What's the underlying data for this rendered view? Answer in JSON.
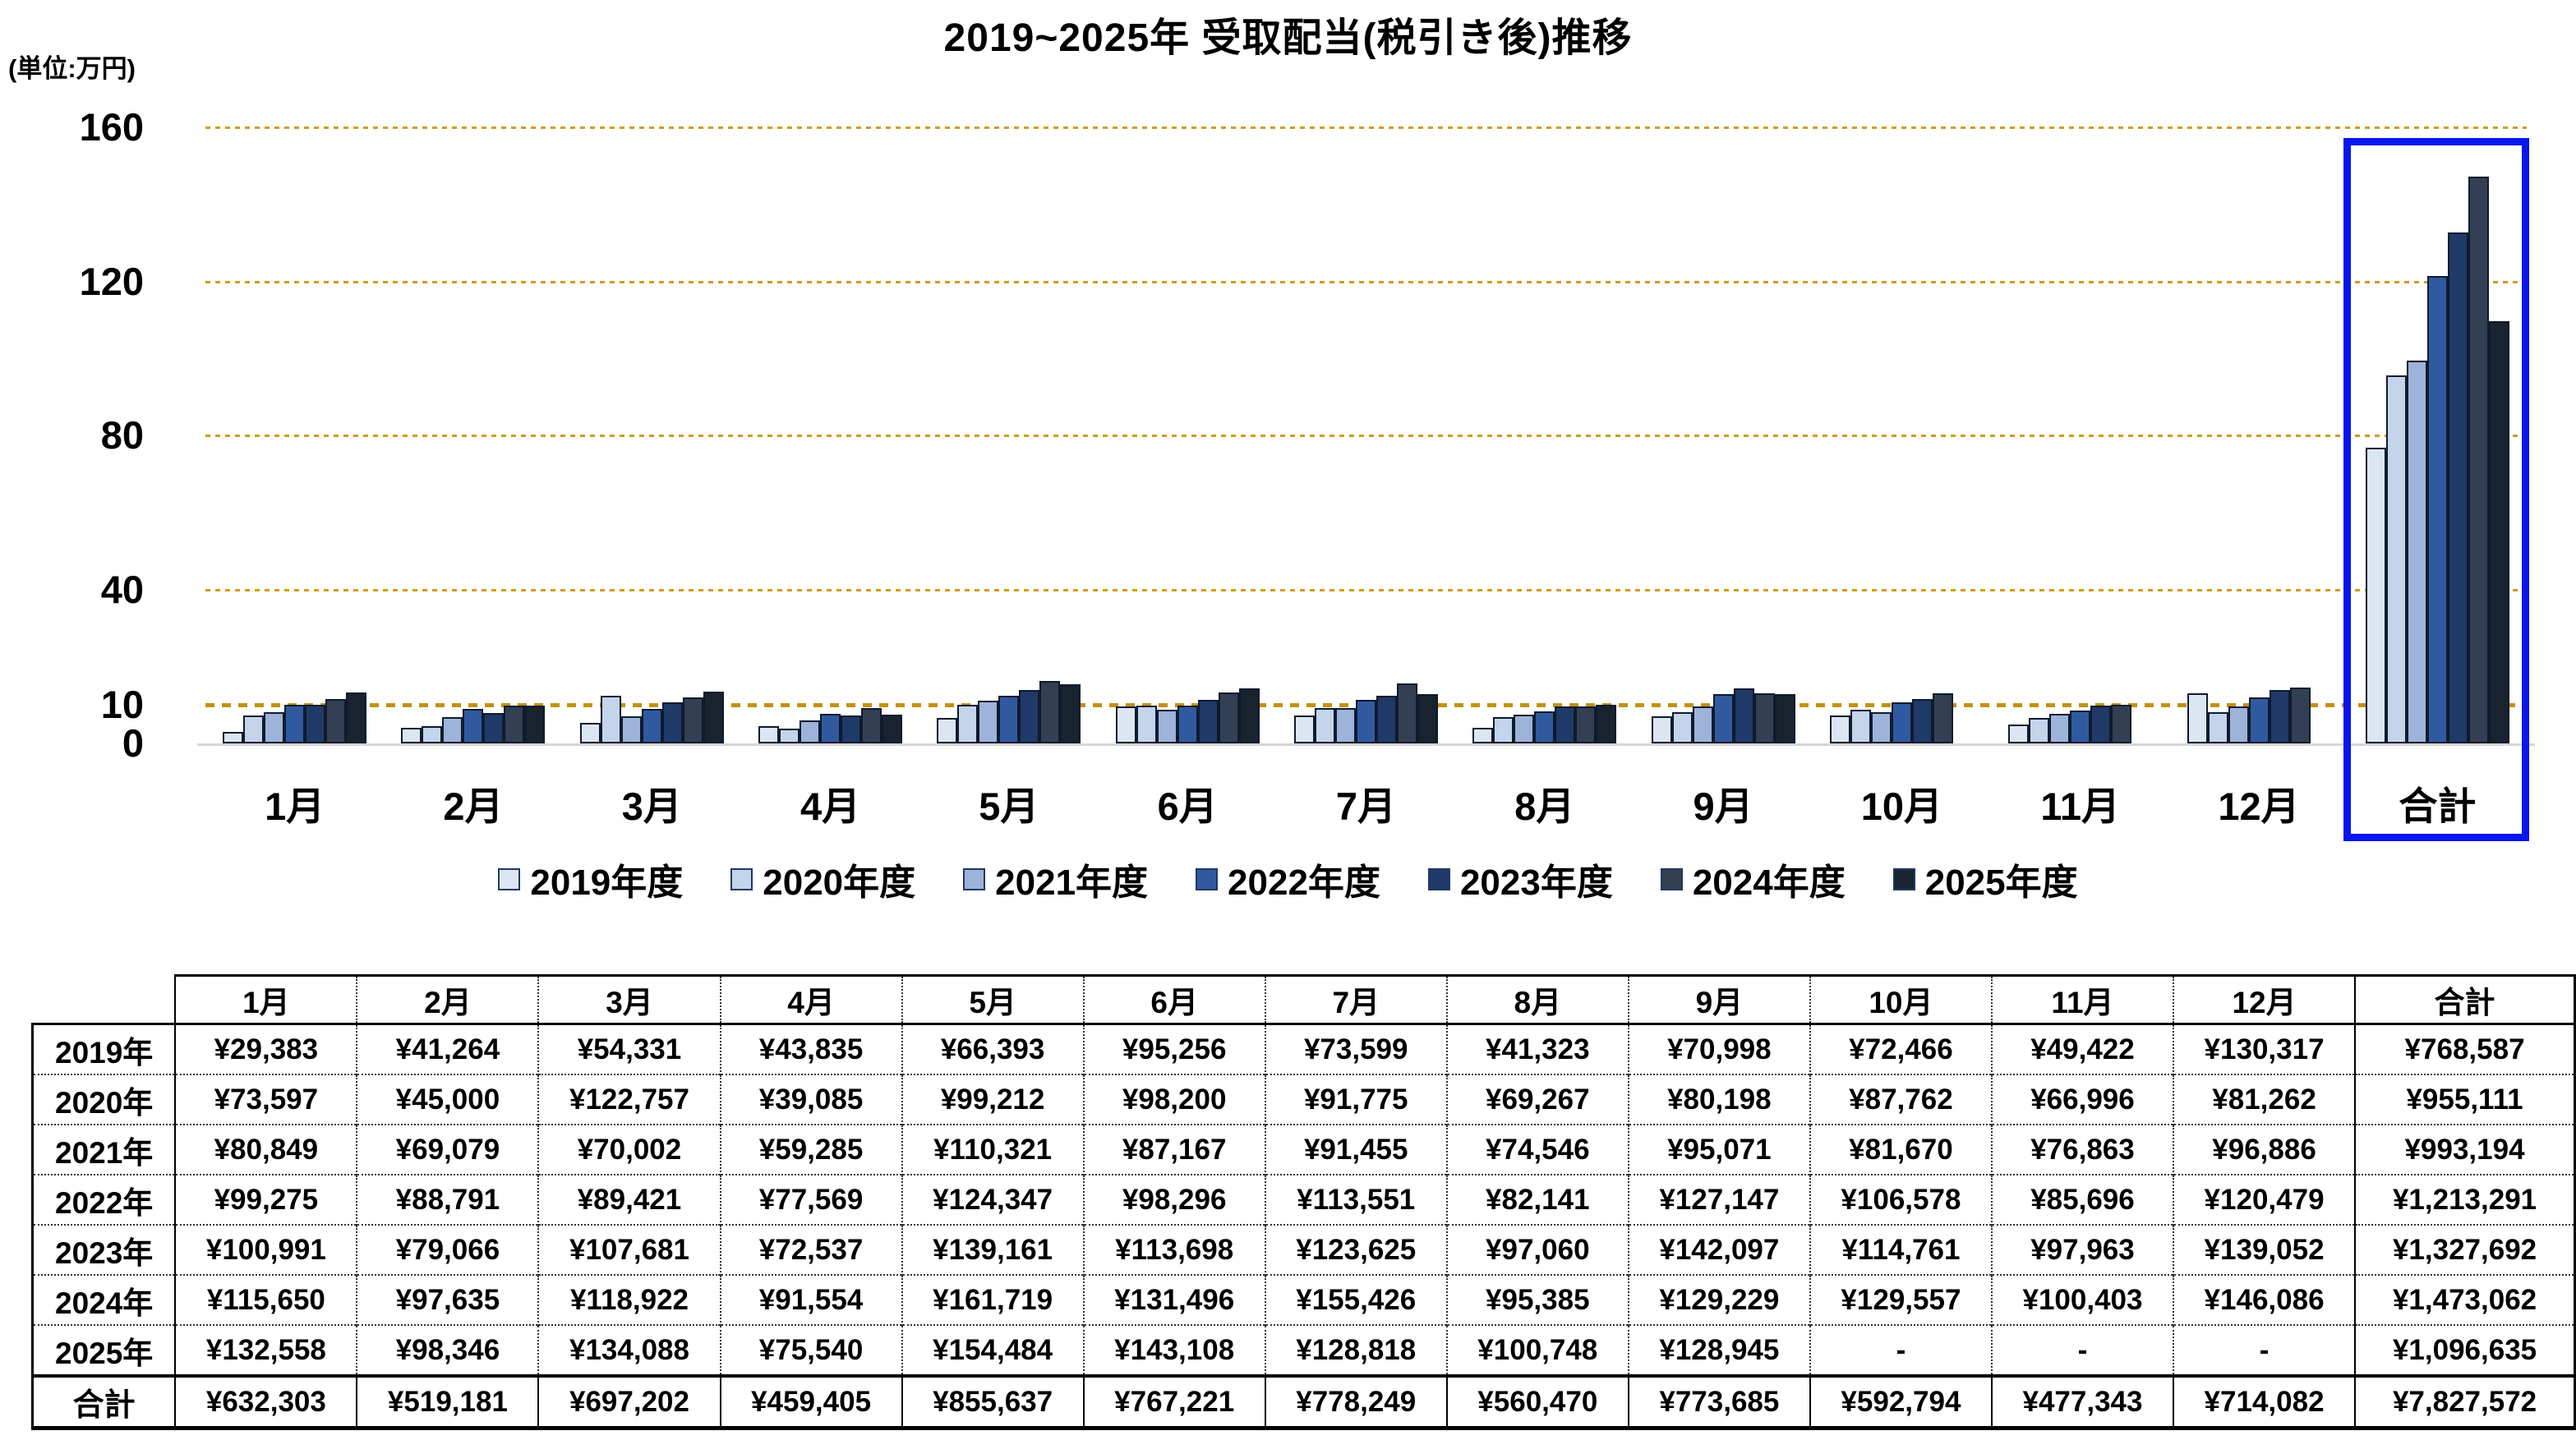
{
  "title": "2019~2025年 受取配当(税引き後)推移",
  "unit_label": "(単位:万円)",
  "chart_data": {
    "type": "bar",
    "title": "2019~2025年 受取配当(税引き後)推移",
    "unit": "万円",
    "categories": [
      "1月",
      "2月",
      "3月",
      "4月",
      "5月",
      "6月",
      "7月",
      "8月",
      "9月",
      "10月",
      "11月",
      "12月",
      "合計"
    ],
    "ylim": [
      0,
      160
    ],
    "yticks": [
      160,
      120,
      80,
      40,
      10,
      0
    ],
    "gridlines": [
      160,
      120,
      80,
      40
    ],
    "reference_line": 10,
    "grid_color": "#cf9c1e",
    "highlight_category": "合計",
    "highlight_box_color": "#0717ee",
    "legend_position": "bottom",
    "series": [
      {
        "name": "2019年度",
        "color": "#dce6f2",
        "values": [
          2.9383,
          4.1264,
          5.4331,
          4.3835,
          6.6393,
          9.5256,
          7.3599,
          4.1323,
          7.0998,
          7.2466,
          4.9422,
          13.0317,
          76.8587
        ]
      },
      {
        "name": "2020年度",
        "color": "#c3d4eb",
        "values": [
          7.3597,
          4.5,
          12.2757,
          3.9085,
          9.9212,
          9.82,
          9.1775,
          6.9267,
          8.0198,
          8.7762,
          6.6996,
          8.1262,
          95.5111
        ]
      },
      {
        "name": "2021年度",
        "color": "#9db3da",
        "values": [
          8.0849,
          6.9079,
          7.0002,
          5.9285,
          11.0321,
          8.7167,
          9.1455,
          7.4546,
          9.5071,
          8.167,
          7.6863,
          9.6886,
          99.3194
        ]
      },
      {
        "name": "2022年度",
        "color": "#305aa0",
        "values": [
          9.9275,
          8.8791,
          8.9421,
          7.7569,
          12.4347,
          9.8296,
          11.3551,
          8.2141,
          12.7147,
          10.6578,
          8.5696,
          12.0479,
          121.3291
        ]
      },
      {
        "name": "2023年度",
        "color": "#1f3a68",
        "values": [
          10.0991,
          7.9066,
          10.7681,
          7.2537,
          13.9161,
          11.3698,
          12.3625,
          9.706,
          14.2097,
          11.4761,
          9.7963,
          13.9052,
          132.7692
        ]
      },
      {
        "name": "2024年度",
        "color": "#333f52",
        "values": [
          11.565,
          9.7635,
          11.8922,
          9.1554,
          16.1719,
          13.1496,
          15.5426,
          9.5385,
          12.9229,
          12.9557,
          10.0403,
          14.6086,
          147.3062
        ]
      },
      {
        "name": "2025年度",
        "color": "#19222f",
        "values": [
          13.2558,
          9.8346,
          13.4088,
          7.554,
          15.4484,
          14.3108,
          12.8818,
          10.0748,
          12.8945,
          null,
          null,
          null,
          109.6635
        ]
      }
    ]
  },
  "table": {
    "col_headers": [
      "",
      "1月",
      "2月",
      "3月",
      "4月",
      "5月",
      "6月",
      "7月",
      "8月",
      "9月",
      "10月",
      "11月",
      "12月",
      "合計"
    ],
    "rows": [
      {
        "label": "2019年",
        "cells": [
          "¥29,383",
          "¥41,264",
          "¥54,331",
          "¥43,835",
          "¥66,393",
          "¥95,256",
          "¥73,599",
          "¥41,323",
          "¥70,998",
          "¥72,466",
          "¥49,422",
          "¥130,317",
          "¥768,587"
        ]
      },
      {
        "label": "2020年",
        "cells": [
          "¥73,597",
          "¥45,000",
          "¥122,757",
          "¥39,085",
          "¥99,212",
          "¥98,200",
          "¥91,775",
          "¥69,267",
          "¥80,198",
          "¥87,762",
          "¥66,996",
          "¥81,262",
          "¥955,111"
        ]
      },
      {
        "label": "2021年",
        "cells": [
          "¥80,849",
          "¥69,079",
          "¥70,002",
          "¥59,285",
          "¥110,321",
          "¥87,167",
          "¥91,455",
          "¥74,546",
          "¥95,071",
          "¥81,670",
          "¥76,863",
          "¥96,886",
          "¥993,194"
        ]
      },
      {
        "label": "2022年",
        "cells": [
          "¥99,275",
          "¥88,791",
          "¥89,421",
          "¥77,569",
          "¥124,347",
          "¥98,296",
          "¥113,551",
          "¥82,141",
          "¥127,147",
          "¥106,578",
          "¥85,696",
          "¥120,479",
          "¥1,213,291"
        ]
      },
      {
        "label": "2023年",
        "cells": [
          "¥100,991",
          "¥79,066",
          "¥107,681",
          "¥72,537",
          "¥139,161",
          "¥113,698",
          "¥123,625",
          "¥97,060",
          "¥142,097",
          "¥114,761",
          "¥97,963",
          "¥139,052",
          "¥1,327,692"
        ]
      },
      {
        "label": "2024年",
        "cells": [
          "¥115,650",
          "¥97,635",
          "¥118,922",
          "¥91,554",
          "¥161,719",
          "¥131,496",
          "¥155,426",
          "¥95,385",
          "¥129,229",
          "¥129,557",
          "¥100,403",
          "¥146,086",
          "¥1,473,062"
        ]
      },
      {
        "label": "2025年",
        "cells": [
          "¥132,558",
          "¥98,346",
          "¥134,088",
          "¥75,540",
          "¥154,484",
          "¥143,108",
          "¥128,818",
          "¥100,748",
          "¥128,945",
          "-",
          "-",
          "-",
          "¥1,096,635"
        ]
      },
      {
        "label": "合計",
        "cells": [
          "¥632,303",
          "¥519,181",
          "¥697,202",
          "¥459,405",
          "¥855,637",
          "¥767,221",
          "¥778,249",
          "¥560,470",
          "¥773,685",
          "¥592,794",
          "¥477,343",
          "¥714,082",
          "¥7,827,572"
        ],
        "is_total": true
      }
    ]
  }
}
